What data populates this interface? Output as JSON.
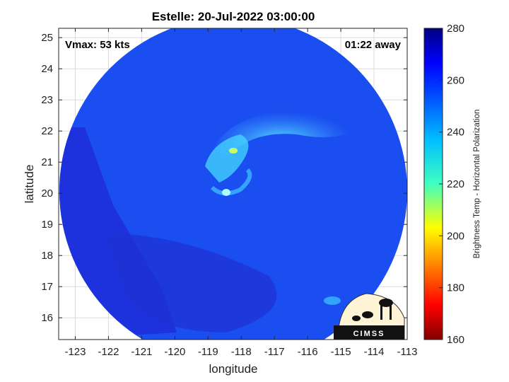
{
  "chart_data": {
    "type": "heatmap",
    "title": "Estelle: 20-Jul-2022 03:00:00",
    "xlabel": "longitude",
    "ylabel": "latitude",
    "xlim": [
      -123.5,
      -113
    ],
    "ylim": [
      15.3,
      25.3
    ],
    "x_ticks": [
      "-123",
      "-122",
      "-121",
      "-120",
      "-119",
      "-118",
      "-117",
      "-116",
      "-115",
      "-114",
      "-113"
    ],
    "y_ticks": [
      "16",
      "17",
      "18",
      "19",
      "20",
      "21",
      "22",
      "23",
      "24",
      "25"
    ],
    "grid": true,
    "annotations": {
      "vmax": "Vmax: 53 kts",
      "time_offset": "01:22 away"
    },
    "colorbar": {
      "label": "Brightness Temp - Horizontal Polarization",
      "min": 160,
      "max": 280,
      "ticks": [
        "160",
        "180",
        "200",
        "220",
        "240",
        "260",
        "280"
      ],
      "colormap": "jet"
    },
    "storm_center": {
      "lon": -118.3,
      "lat": 20.0
    },
    "logo_text": "CIMSS"
  }
}
